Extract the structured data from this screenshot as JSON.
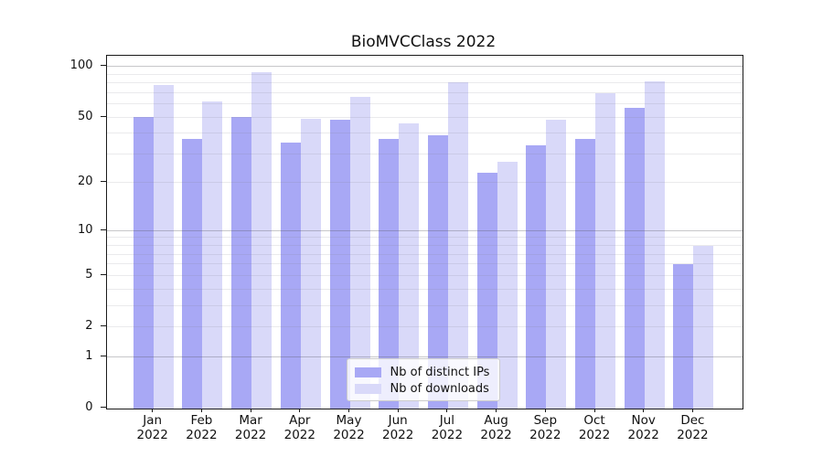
{
  "title": "BioMVCClass 2022",
  "colors": {
    "bar_distinct_ips": "#a8a8f5",
    "bar_downloads": "#d9d9f9",
    "axis": "#1a1a1a"
  },
  "chart_data": {
    "type": "bar",
    "title": "BioMVCClass 2022",
    "categories": [
      "Jan",
      "Feb",
      "Mar",
      "Apr",
      "May",
      "Jun",
      "Jul",
      "Aug",
      "Sep",
      "Oct",
      "Nov",
      "Dec"
    ],
    "category_year": "2022",
    "series": [
      {
        "name": "Nb of distinct IPs",
        "color": "#a8a8f5",
        "values": [
          50,
          37,
          50,
          35,
          48,
          37,
          39,
          23,
          34,
          37,
          57,
          6
        ]
      },
      {
        "name": "Nb of downloads",
        "color": "#d9d9f9",
        "values": [
          78,
          62,
          92,
          49,
          66,
          46,
          81,
          27,
          48,
          69,
          82,
          8
        ]
      }
    ],
    "yscale": "log1p",
    "ylim": [
      0,
      110
    ],
    "yticks": [
      0,
      1,
      2,
      5,
      10,
      20,
      50,
      100
    ],
    "grid_minor": [
      2,
      3,
      4,
      5,
      6,
      7,
      8,
      9,
      20,
      30,
      40,
      50,
      60,
      70,
      80,
      90
    ],
    "grid_major": [
      1,
      10,
      100
    ],
    "grid": true,
    "legend_position": "lower center"
  }
}
